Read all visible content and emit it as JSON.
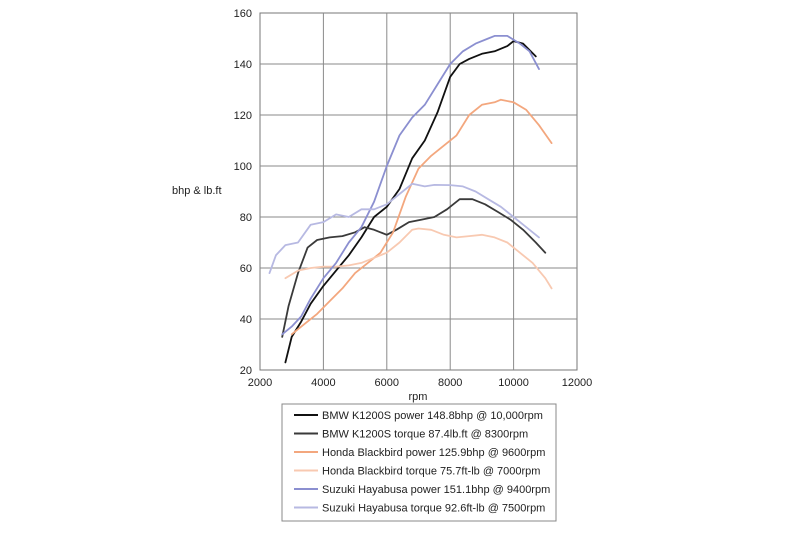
{
  "chart_data": {
    "type": "line",
    "xlabel": "rpm",
    "ylabel": "bhp & lb.ft",
    "xlim": [
      2000,
      12000
    ],
    "ylim": [
      20,
      160
    ],
    "xticks": [
      "2000",
      "4000",
      "6000",
      "8000",
      "10000",
      "12000"
    ],
    "yticks": [
      "20",
      "40",
      "60",
      "80",
      "100",
      "120",
      "140",
      "160"
    ],
    "grid": true,
    "legend_position": "bottom",
    "series": [
      {
        "name": "BMW K1200S power 148.8bhp @ 10,000rpm",
        "color": "#111111",
        "x": [
          2800,
          3000,
          3300,
          3600,
          4000,
          4400,
          4800,
          5200,
          5600,
          6000,
          6400,
          6800,
          7200,
          7600,
          8000,
          8300,
          8600,
          9000,
          9400,
          9800,
          10000,
          10300,
          10700
        ],
        "y": [
          23,
          33,
          39,
          46,
          53,
          59,
          65,
          72,
          80,
          84,
          91,
          103,
          110,
          121,
          135,
          140,
          142,
          144,
          145,
          147,
          149,
          148,
          143
        ]
      },
      {
        "name": "BMW K1200S torque 87.4lb.ft @ 8300rpm",
        "color": "#3a3a3a",
        "x": [
          2700,
          2900,
          3200,
          3500,
          3800,
          4200,
          4600,
          5000,
          5300,
          5600,
          6000,
          6300,
          6700,
          7100,
          7500,
          7900,
          8300,
          8700,
          9100,
          9500,
          9900,
          10300,
          10700,
          11000
        ],
        "y": [
          33,
          45,
          58,
          68,
          71,
          72,
          72.5,
          74,
          76,
          75,
          73,
          75,
          78,
          79,
          80,
          83,
          87,
          87,
          85,
          82,
          79,
          75,
          70,
          66
        ]
      },
      {
        "name": "Honda Blackbird power 125.9bhp @ 9600rpm",
        "color": "#f3a77e",
        "x": [
          3000,
          3400,
          3800,
          4200,
          4600,
          5000,
          5400,
          5800,
          6200,
          6600,
          7000,
          7400,
          7800,
          8200,
          8600,
          9000,
          9400,
          9600,
          10000,
          10400,
          10800,
          11200
        ],
        "y": [
          34,
          38,
          42,
          47,
          52,
          58,
          62,
          66,
          74,
          88,
          99,
          104,
          108,
          112,
          120,
          124,
          125,
          126,
          125,
          122,
          116,
          109
        ]
      },
      {
        "name": "Honda Blackbird torque 75.7ft-lb @ 7000rpm",
        "color": "#f8c9b1",
        "x": [
          2800,
          3200,
          3600,
          4000,
          4400,
          4800,
          5200,
          5600,
          6000,
          6400,
          6800,
          7000,
          7400,
          7800,
          8200,
          8600,
          9000,
          9400,
          9800,
          10200,
          10600,
          11000,
          11200
        ],
        "y": [
          56,
          59,
          60,
          60.5,
          60.5,
          61,
          62,
          64,
          66,
          70,
          75,
          75.5,
          75,
          73,
          72,
          72.5,
          73,
          72,
          70,
          66,
          62,
          56,
          52
        ]
      },
      {
        "name": "Suzuki Hayabusa power 151.1bhp @ 9400rpm",
        "color": "#8b8fd0",
        "x": [
          2700,
          3000,
          3300,
          3600,
          4000,
          4400,
          4800,
          5200,
          5600,
          6000,
          6400,
          6800,
          7200,
          7600,
          8000,
          8400,
          8800,
          9200,
          9400,
          9800,
          10200,
          10500,
          10800
        ],
        "y": [
          34,
          37,
          41,
          48,
          56,
          62,
          70,
          76,
          86,
          100,
          112,
          119,
          124,
          132,
          140,
          145,
          148,
          150,
          151,
          151,
          148,
          145,
          138
        ]
      },
      {
        "name": "Suzuki Hayabusa torque 92.6ft-lb @ 7500rpm",
        "color": "#b7b9e2",
        "x": [
          2300,
          2500,
          2800,
          3200,
          3600,
          4000,
          4400,
          4800,
          5200,
          5600,
          6000,
          6400,
          6800,
          7200,
          7500,
          8000,
          8400,
          8800,
          9200,
          9600,
          10000,
          10400,
          10800
        ],
        "y": [
          58,
          65,
          69,
          70,
          77,
          78,
          81,
          80,
          83,
          83,
          85,
          89,
          93,
          92,
          92.6,
          92.5,
          92,
          90,
          87,
          84,
          80,
          76,
          72
        ]
      }
    ]
  }
}
